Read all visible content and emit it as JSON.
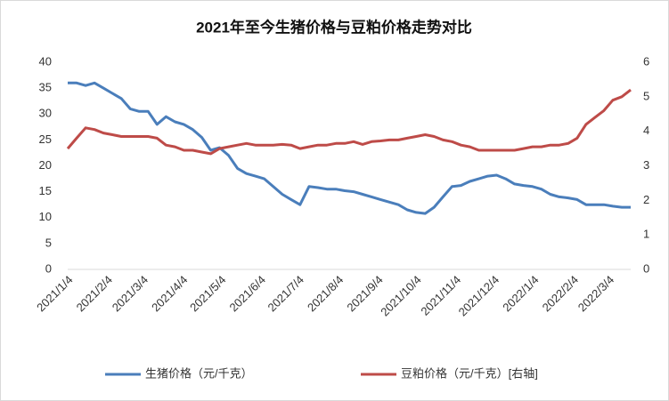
{
  "chart_data": {
    "type": "line",
    "title": "2021年至今生猪价格与豆粕价格走势对比",
    "x": [
      "2021/1/4",
      "2021/1/11",
      "2021/1/18",
      "2021/1/25",
      "2021/2/1",
      "2021/2/8",
      "2021/2/15",
      "2021/2/22",
      "2021/3/1",
      "2021/3/8",
      "2021/3/15",
      "2021/3/22",
      "2021/3/29",
      "2021/4/5",
      "2021/4/12",
      "2021/4/19",
      "2021/4/26",
      "2021/5/3",
      "2021/5/10",
      "2021/5/17",
      "2021/5/24",
      "2021/5/31",
      "2021/6/7",
      "2021/6/14",
      "2021/6/21",
      "2021/6/28",
      "2021/7/5",
      "2021/7/12",
      "2021/7/19",
      "2021/7/26",
      "2021/8/2",
      "2021/8/9",
      "2021/8/16",
      "2021/8/23",
      "2021/8/30",
      "2021/9/6",
      "2021/9/13",
      "2021/9/20",
      "2021/9/27",
      "2021/10/4",
      "2021/10/11",
      "2021/10/18",
      "2021/10/25",
      "2021/11/1",
      "2021/11/8",
      "2021/11/15",
      "2021/11/22",
      "2021/11/29",
      "2021/12/6",
      "2021/12/13",
      "2021/12/20",
      "2021/12/27",
      "2022/1/3",
      "2022/1/10",
      "2022/1/17",
      "2022/1/24",
      "2022/1/31",
      "2022/2/7",
      "2022/2/14",
      "2022/2/21",
      "2022/2/28",
      "2022/3/7",
      "2022/3/14",
      "2022/3/21"
    ],
    "xlim": [
      "2021/1/4",
      "2022/3/21"
    ],
    "xticks": [
      "2021/1/4",
      "2021/2/4",
      "2021/3/4",
      "2021/4/4",
      "2021/5/4",
      "2021/6/4",
      "2021/7/4",
      "2021/8/4",
      "2021/9/4",
      "2021/10/4",
      "2021/11/4",
      "2021/12/4",
      "2022/1/4",
      "2022/2/4",
      "2022/3/4"
    ],
    "ylim": [
      0,
      40
    ],
    "yticks": [
      0,
      5,
      10,
      15,
      20,
      25,
      30,
      35,
      40
    ],
    "y2lim": [
      0,
      6
    ],
    "y2ticks": [
      0,
      1,
      2,
      3,
      4,
      5,
      6
    ],
    "series": [
      {
        "name": "生猪价格（元/千克）",
        "color": "#4a7ebb",
        "values": [
          36,
          36,
          35.5,
          36,
          35,
          34,
          33,
          31,
          30.5,
          30.5,
          28,
          29.5,
          28.5,
          28,
          27,
          25.5,
          23,
          23.5,
          22,
          19.5,
          18.5,
          18,
          17.5,
          16,
          14.5,
          13.5,
          12.5,
          16,
          15.8,
          15.5,
          15.5,
          15.2,
          15,
          14.5,
          14,
          13.5,
          13,
          12.5,
          11.5,
          11,
          10.8,
          12,
          14,
          16,
          16.2,
          17,
          17.5,
          18,
          18.2,
          17.5,
          16.5,
          16.2,
          16,
          15.5,
          14.5,
          14,
          13.8,
          13.5,
          12.5,
          12.5,
          12.5,
          12.2,
          12,
          12
        ]
      },
      {
        "name": "豆粕价格（元/千克）[右轴]",
        "color": "#be4b48",
        "axis": "y2",
        "values": [
          3.5,
          3.8,
          4.1,
          4.05,
          3.95,
          3.9,
          3.85,
          3.85,
          3.85,
          3.85,
          3.8,
          3.6,
          3.55,
          3.45,
          3.45,
          3.4,
          3.35,
          3.5,
          3.55,
          3.6,
          3.65,
          3.6,
          3.6,
          3.6,
          3.62,
          3.6,
          3.5,
          3.55,
          3.6,
          3.6,
          3.65,
          3.65,
          3.7,
          3.62,
          3.7,
          3.72,
          3.75,
          3.75,
          3.8,
          3.85,
          3.9,
          3.85,
          3.75,
          3.7,
          3.6,
          3.55,
          3.45,
          3.45,
          3.45,
          3.45,
          3.45,
          3.5,
          3.55,
          3.55,
          3.6,
          3.6,
          3.65,
          3.8,
          4.2,
          4.4,
          4.6,
          4.9,
          5.0,
          5.2
        ]
      }
    ]
  }
}
